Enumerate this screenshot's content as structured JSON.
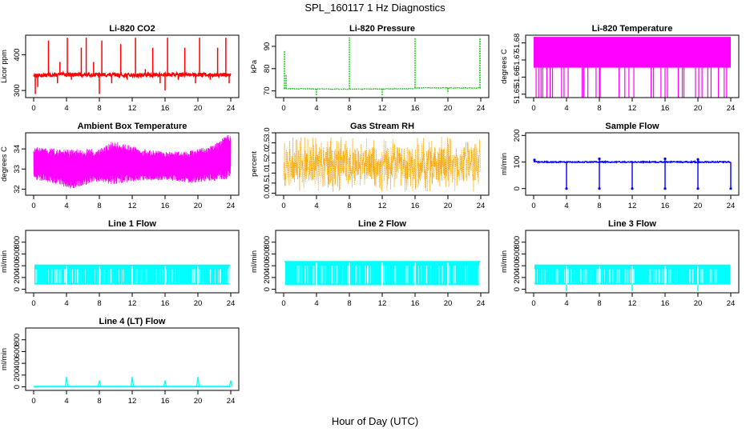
{
  "figure": {
    "title": "SPL_160117  1 Hz Diagnostics",
    "xlabel": "Hour of Day (UTC)"
  },
  "chart_data": [
    {
      "type": "line",
      "title": "Li-820 CO2",
      "ylabel": "Licor ppm",
      "color": "#ff0000",
      "style": "spiky",
      "xlim": [
        0,
        24
      ],
      "xticks": [
        0,
        4,
        8,
        12,
        16,
        20,
        24
      ],
      "ylim": [
        280,
        455
      ],
      "yticks": [
        300,
        400
      ],
      "baseline": [
        [
          0,
          342
        ],
        [
          4,
          345
        ],
        [
          8,
          344
        ],
        [
          12,
          343
        ],
        [
          16,
          344
        ],
        [
          20,
          345
        ],
        [
          24,
          343
        ]
      ],
      "noise": 5,
      "spikes": [
        [
          0.2,
          290
        ],
        [
          0.5,
          310
        ],
        [
          1.8,
          440
        ],
        [
          2.9,
          320
        ],
        [
          3.2,
          380
        ],
        [
          4.1,
          448
        ],
        [
          4.6,
          330
        ],
        [
          5.8,
          420
        ],
        [
          6.4,
          448
        ],
        [
          7.3,
          380
        ],
        [
          8.0,
          290
        ],
        [
          8.3,
          440
        ],
        [
          9.5,
          320
        ],
        [
          10.6,
          430
        ],
        [
          11.4,
          330
        ],
        [
          12.4,
          448
        ],
        [
          13.6,
          360
        ],
        [
          14.5,
          420
        ],
        [
          15.4,
          320
        ],
        [
          16.0,
          300
        ],
        [
          16.3,
          448
        ],
        [
          17.6,
          330
        ],
        [
          18.4,
          420
        ],
        [
          19.7,
          320
        ],
        [
          20.2,
          448
        ],
        [
          21.5,
          330
        ],
        [
          22.4,
          420
        ],
        [
          23.4,
          448
        ],
        [
          23.8,
          320
        ]
      ]
    },
    {
      "type": "line",
      "title": "Li-820 Pressure",
      "ylabel": "kPa",
      "color": "#00cc00",
      "style": "dashed-step",
      "xlim": [
        0,
        24
      ],
      "xticks": [
        0,
        4,
        8,
        12,
        16,
        20,
        24
      ],
      "ylim": [
        67,
        95
      ],
      "yticks": [
        70,
        80,
        90
      ],
      "baseline": [
        [
          0,
          71
        ],
        [
          8,
          70.8
        ],
        [
          15.9,
          71
        ],
        [
          16,
          71.4
        ],
        [
          24,
          71.3
        ]
      ],
      "noise": 0.3,
      "spikes": [
        [
          0.1,
          88
        ],
        [
          0.3,
          77
        ],
        [
          4.0,
          68
        ],
        [
          8.0,
          94
        ],
        [
          12.0,
          68
        ],
        [
          16.0,
          94
        ],
        [
          20.0,
          69
        ],
        [
          23.9,
          94
        ]
      ]
    },
    {
      "type": "line",
      "title": "Li-820 Temperature",
      "ylabel": "degrees C",
      "color": "#ff00ff",
      "style": "band",
      "xlim": [
        0,
        24
      ],
      "xticks": [
        0,
        4,
        8,
        12,
        16,
        20,
        24
      ],
      "ylim": [
        51.648,
        51.6845
      ],
      "yticks": [
        51.65,
        51.66,
        51.67,
        51.68
      ],
      "band": [
        51.6655,
        51.6835
      ],
      "dips": [
        0.3,
        0.6,
        0.9,
        1.1,
        1.6,
        2.0,
        2.3,
        3.4,
        3.7,
        4.2,
        5.9,
        6.1,
        6.6,
        7.6,
        8.0,
        8.1,
        10.4,
        11.1,
        11.6,
        12.2,
        14.3,
        14.6,
        15.5,
        16.0,
        16.3,
        17.6,
        18.1,
        18.3,
        19.7,
        20.1,
        20.5,
        21.2,
        21.6,
        22.5,
        23.2,
        23.5
      ]
    },
    {
      "type": "line",
      "title": "Ambient Box Temperature",
      "ylabel": "degrees C",
      "color": "#ff00ff",
      "style": "oscillating",
      "xlim": [
        0,
        24
      ],
      "xticks": [
        0,
        4,
        8,
        12,
        16,
        20,
        24
      ],
      "ylim": [
        31.7,
        34.8
      ],
      "yticks": [
        32.0,
        33.0,
        34.0
      ],
      "baseline": [
        [
          0,
          33.3
        ],
        [
          3,
          33.1
        ],
        [
          4.5,
          33.0
        ],
        [
          8,
          33.2
        ],
        [
          10,
          33.3
        ],
        [
          14,
          33.2
        ],
        [
          19,
          33.1
        ],
        [
          22,
          33.3
        ],
        [
          23.5,
          33.6
        ],
        [
          24,
          33.7
        ]
      ],
      "amplitude": [
        [
          0,
          0.8
        ],
        [
          3,
          0.9
        ],
        [
          4.5,
          1.0
        ],
        [
          8,
          0.8
        ],
        [
          9.5,
          1.1
        ],
        [
          13,
          0.8
        ],
        [
          16,
          0.7
        ],
        [
          22,
          0.9
        ],
        [
          23.5,
          1.1
        ],
        [
          24,
          1.0
        ]
      ]
    },
    {
      "type": "line",
      "title": "Gas Stream RH",
      "ylabel": "percent",
      "color": "#ffa500",
      "style": "dense",
      "xlim": [
        0,
        24
      ],
      "xticks": [
        0,
        4,
        8,
        12,
        16,
        20,
        24
      ],
      "ylim": [
        -0.1,
        3.0
      ],
      "yticks": [
        0.0,
        0.5,
        1.0,
        1.5,
        2.0,
        2.5,
        3.0
      ],
      "band": [
        0.6,
        2.3
      ],
      "extremes": [
        0.05,
        2.8
      ]
    },
    {
      "type": "line",
      "title": "Sample Flow",
      "ylabel": "ml/min",
      "color": "#0000ff",
      "style": "flat-dips",
      "xlim": [
        0,
        24
      ],
      "xticks": [
        0,
        4,
        8,
        12,
        16,
        20,
        24
      ],
      "ylim": [
        -25,
        210
      ],
      "yticks": [
        0,
        100,
        200
      ],
      "level": 100,
      "noise": 2,
      "events": [
        [
          0.1,
          108
        ],
        [
          4.0,
          0
        ],
        [
          8.0,
          0
        ],
        [
          8.0,
          112
        ],
        [
          12.0,
          0
        ],
        [
          16.0,
          0
        ],
        [
          16.0,
          112
        ],
        [
          20.0,
          0
        ],
        [
          20.0,
          110
        ],
        [
          24.0,
          0
        ]
      ]
    },
    {
      "type": "line",
      "title": "Line 1 Flow",
      "ylabel": "ml/min",
      "color": "#00ffff",
      "style": "block",
      "xlim": [
        0,
        24
      ],
      "xticks": [
        0,
        4,
        8,
        12,
        16,
        20,
        24
      ],
      "ylim": [
        -60,
        1000
      ],
      "yticks": [
        0,
        200,
        400,
        600,
        800
      ],
      "band": [
        80,
        420
      ],
      "gaps": [
        4.0,
        8.0,
        12.0,
        16.0,
        20.0,
        23.8
      ]
    },
    {
      "type": "line",
      "title": "Line 2 Flow",
      "ylabel": "ml/min",
      "color": "#00ffff",
      "style": "block",
      "xlim": [
        0,
        24
      ],
      "xticks": [
        0,
        4,
        8,
        12,
        16,
        20,
        24
      ],
      "ylim": [
        -60,
        1000
      ],
      "yticks": [
        0,
        200,
        400,
        600,
        800
      ],
      "band": [
        70,
        480
      ],
      "gaps": [
        0.1,
        4.0,
        8.0,
        12.0,
        16.0,
        20.0,
        23.9
      ]
    },
    {
      "type": "line",
      "title": "Line 3 Flow",
      "ylabel": "ml/min",
      "color": "#00ffff",
      "style": "block",
      "xlim": [
        0,
        24
      ],
      "xticks": [
        0,
        4,
        8,
        12,
        16,
        20,
        24
      ],
      "ylim": [
        -60,
        1000
      ],
      "yticks": [
        0,
        200,
        400,
        600,
        800
      ],
      "band": [
        80,
        420
      ],
      "gaps": [
        4.0,
        8.0,
        12.0,
        16.0,
        20.0
      ],
      "dips": [
        4.0,
        12.0,
        20.0
      ]
    },
    {
      "type": "line",
      "title": "Line 4 (LT) Flow",
      "ylabel": "ml/min",
      "color": "#00ffff",
      "style": "flat-spikes",
      "xlim": [
        0,
        24
      ],
      "xticks": [
        0,
        4,
        8,
        12,
        16,
        20,
        24
      ],
      "ylim": [
        -60,
        1000
      ],
      "yticks": [
        0,
        200,
        400,
        600,
        800
      ],
      "level": 5,
      "spikes": [
        [
          4.0,
          170
        ],
        [
          8.0,
          110
        ],
        [
          12.0,
          170
        ],
        [
          16.0,
          110
        ],
        [
          20.0,
          170
        ],
        [
          24.0,
          110
        ]
      ]
    }
  ]
}
